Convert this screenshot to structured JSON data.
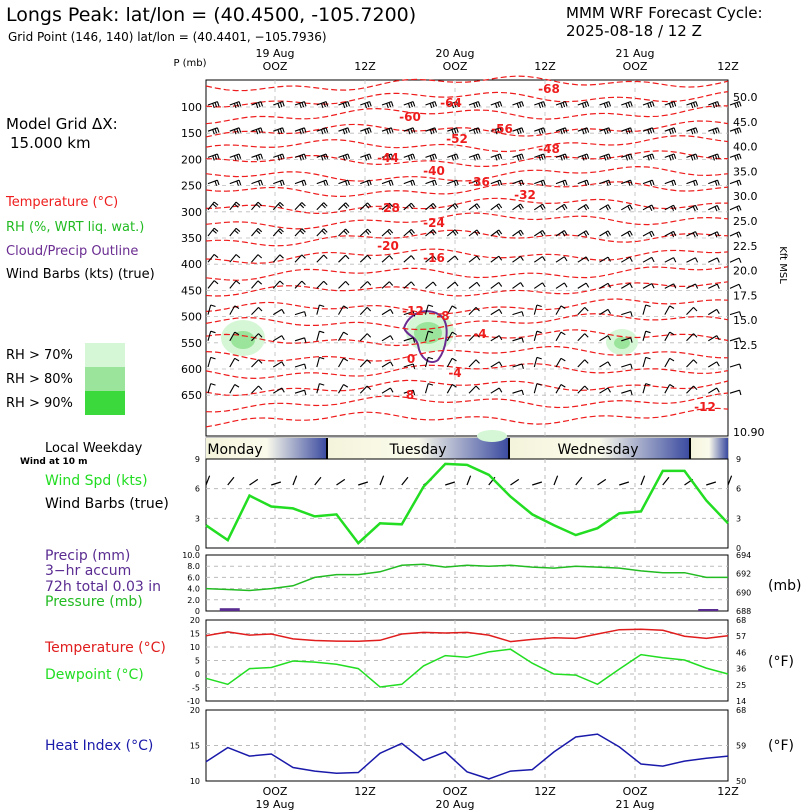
{
  "header": {
    "title": "Longs Peak:  lat/lon = (40.4500, -105.7200)",
    "grid_point": "Grid Point (146, 140) lat/lon = (40.4401, −105.7936)",
    "cycle_label": "MMM WRF Forecast Cycle:",
    "cycle_value": "2025-08-18 / 12  Z",
    "grid_dx_label": "Model Grid ΔX:",
    "grid_dx_value": "15.000 km"
  },
  "legend": {
    "temperature": "Temperature (°C)",
    "rh": "RH (%, WRT liq. wat.)",
    "cloud": "Cloud/Precip Outline",
    "wind": "Wind Barbs (kts) (true)",
    "rh70": "RH > 70%",
    "rh80": "RH > 80%",
    "rh90": "RH > 90%",
    "colors": {
      "temperature": "#ee1c1c",
      "rh": "#22bb22",
      "cloud": "#6a2c91",
      "rh70": "#d6f7d6",
      "rh80": "#9be49b",
      "rh90": "#3bd93b"
    }
  },
  "panel_labels": {
    "local_weekday": "Local Weekday",
    "wind_at_10m": "Wind at 10 m",
    "wind_spd": "Wind Spd (kts)",
    "wind_barbs": "Wind Barbs (true)",
    "precip": "Precip (mm)",
    "precip_accum": "3−hr accum",
    "precip_total": "72h total 0.03 in",
    "pressure": "Pressure (mb)",
    "pressure_unit": "(mb)",
    "temperature": "Temperature (°C)",
    "dewpoint": "Dewpoint (°C)",
    "temp_unit": "(°F)",
    "heat_index": "Heat Index (°C)",
    "heat_unit": "(°F)",
    "p_mb": "P (mb)",
    "kft_msl": "Kft MSL"
  },
  "time_axis": {
    "top_dates": [
      "19 Aug",
      "20 Aug",
      "21 Aug"
    ],
    "bottom_dates": [
      "19 Aug",
      "20 Aug",
      "21 Aug"
    ],
    "top_ticks": [
      "OOZ",
      "12Z",
      "OOZ",
      "12Z",
      "OOZ",
      "12Z"
    ],
    "bottom_ticks": [
      "OOZ",
      "12Z",
      "OOZ",
      "12Z",
      "OOZ",
      "12Z"
    ],
    "weekdays": [
      "Monday",
      "Tuesday",
      "Wednesday"
    ]
  },
  "chart_data": [
    {
      "type": "line",
      "title": "Upper-air cross section",
      "ylabel": "P (mb)",
      "y_ticks": [
        "100",
        "150",
        "200",
        "250",
        "300",
        "350",
        "400",
        "450",
        "500",
        "550",
        "600",
        "650"
      ],
      "right_ticks": [
        "50.0",
        "45.0",
        "40.0",
        "35.0",
        "30.0",
        "25.0",
        "22.5",
        "20.0",
        "17.5",
        "15.0",
        "12.5",
        "10.90"
      ],
      "right_label": "Kft MSL",
      "temperature_labels": [
        "-68",
        "-64",
        "-60",
        "-56",
        "-52",
        "-48",
        "-44",
        "-40",
        "-36",
        "-32",
        "-28",
        "-24",
        "-20",
        "-16",
        "-12",
        "-8",
        "-4",
        "0",
        "-4",
        "8",
        "-12"
      ]
    },
    {
      "type": "line",
      "title": "Wind Spd (kts)",
      "ylim": [
        0,
        9
      ],
      "y_ticks": [
        "0",
        "3",
        "6",
        "9"
      ],
      "series": [
        {
          "name": "Wind Spd (kts)",
          "color": "#22dd22",
          "x": [
            0,
            1,
            2,
            3,
            4,
            5,
            6,
            7,
            8,
            9,
            10,
            11,
            12,
            13,
            14,
            15,
            16,
            17,
            18,
            19,
            20,
            21,
            22,
            23,
            24
          ],
          "values": [
            2.3,
            0.8,
            5.3,
            4.2,
            4.0,
            3.2,
            3.4,
            0.5,
            2.5,
            2.4,
            6.2,
            8.5,
            8.4,
            7.4,
            5.2,
            3.4,
            2.3,
            1.3,
            2.0,
            3.5,
            3.7,
            7.8,
            7.8,
            4.8,
            2.5
          ]
        }
      ]
    },
    {
      "type": "line",
      "title": "Pressure (mb)",
      "ylim": [
        0,
        10
      ],
      "y_ticks": [
        "0",
        "2.0",
        "4.0",
        "6.0",
        "8.0",
        "10.0"
      ],
      "right_ticks": [
        "688",
        "690",
        "692",
        "694"
      ],
      "series": [
        {
          "name": "Pressure (mb)",
          "color": "#22bb22",
          "x": [
            0,
            1,
            2,
            3,
            4,
            5,
            6,
            7,
            8,
            9,
            10,
            11,
            12,
            13,
            14,
            15,
            16,
            17,
            18,
            19,
            20,
            21,
            22,
            23,
            24
          ],
          "values": [
            690.4,
            690.3,
            690.2,
            690.4,
            690.7,
            691.6,
            691.9,
            691.9,
            692.2,
            692.9,
            693.0,
            692.7,
            692.9,
            692.8,
            692.9,
            692.7,
            692.6,
            692.8,
            692.7,
            692.6,
            692.3,
            692.1,
            692.1,
            691.6,
            691.6
          ]
        },
        {
          "name": "Precip (mm)",
          "color": "#5a2c91",
          "bars": [
            {
              "x": 1,
              "value": 0.5
            },
            {
              "x": 23,
              "value": 0.05
            }
          ]
        }
      ]
    },
    {
      "type": "line",
      "title": "Temperature / Dewpoint",
      "ylim": [
        -10,
        20
      ],
      "y_ticks": [
        "-10",
        "-5",
        "0",
        "5",
        "10",
        "15",
        "20"
      ],
      "right_ticks": [
        "14",
        "25",
        "36",
        "46",
        "57",
        "68"
      ],
      "series": [
        {
          "name": "Temperature (°C)",
          "color": "#e01c1c",
          "x": [
            0,
            1,
            2,
            3,
            4,
            5,
            6,
            7,
            8,
            9,
            10,
            11,
            12,
            13,
            14,
            15,
            16,
            17,
            18,
            19,
            20,
            21,
            22,
            23,
            24
          ],
          "values": [
            14.2,
            15.6,
            14.4,
            14.8,
            13.0,
            12.4,
            12.2,
            12.1,
            12.5,
            14.8,
            15.4,
            15.2,
            15.4,
            14.4,
            12.0,
            12.8,
            13.4,
            13.2,
            14.8,
            16.4,
            16.6,
            16.2,
            14.0,
            13.2,
            14.2
          ]
        },
        {
          "name": "Dewpoint (°C)",
          "color": "#22dd22",
          "x": [
            0,
            1,
            2,
            3,
            4,
            5,
            6,
            7,
            8,
            9,
            10,
            11,
            12,
            13,
            14,
            15,
            16,
            17,
            18,
            19,
            20,
            21,
            22,
            23,
            24
          ],
          "values": [
            -1.6,
            -3.8,
            2.0,
            2.4,
            4.8,
            4.4,
            3.6,
            2.0,
            -4.8,
            -3.8,
            3.0,
            6.8,
            6.2,
            8.2,
            9.2,
            4.0,
            0.0,
            -0.4,
            -3.8,
            1.8,
            7.2,
            6.0,
            5.2,
            2.2,
            0.0
          ]
        }
      ]
    },
    {
      "type": "line",
      "title": "Heat Index (°C)",
      "ylim": [
        10,
        20
      ],
      "y_ticks": [
        "10",
        "15",
        "20"
      ],
      "right_ticks": [
        "50",
        "59",
        "68"
      ],
      "series": [
        {
          "name": "Heat Index (°C)",
          "color": "#1a1aaa",
          "x": [
            0,
            1,
            2,
            3,
            4,
            5,
            6,
            7,
            8,
            9,
            10,
            11,
            12,
            13,
            14,
            15,
            16,
            17,
            18,
            19,
            20,
            21,
            22,
            23,
            24
          ],
          "values": [
            12.7,
            14.7,
            13.5,
            13.8,
            11.9,
            11.4,
            11.1,
            11.2,
            13.9,
            15.3,
            12.9,
            14.1,
            11.3,
            10.3,
            11.4,
            11.6,
            14.1,
            16.2,
            16.6,
            14.8,
            12.4,
            12.1,
            12.8,
            13.2,
            13.5
          ]
        }
      ]
    }
  ]
}
